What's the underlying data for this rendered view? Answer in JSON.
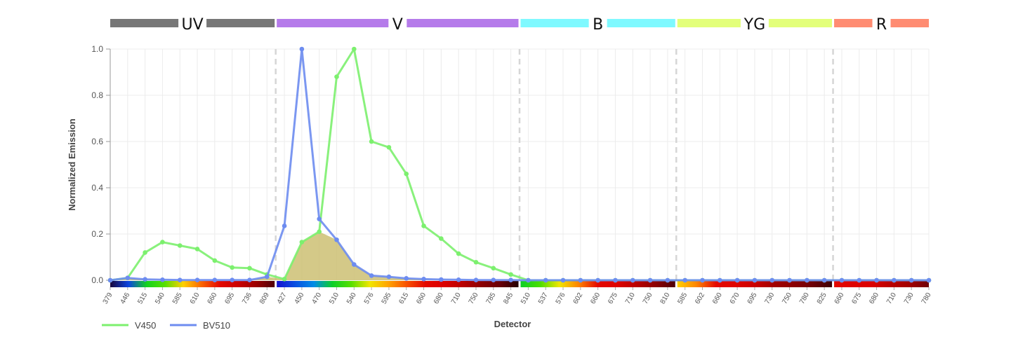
{
  "chart_data": {
    "type": "line",
    "title": "",
    "xlabel": "Detector",
    "ylabel": "Normalized Emission",
    "ylim": [
      0,
      1
    ],
    "yticks": [
      "0.0",
      "0.2",
      "0.4",
      "0.6",
      "0.8",
      "1.0"
    ],
    "grid": true,
    "legend_position": "bottom-left",
    "lasers": [
      {
        "name": "UV",
        "color": "#777777",
        "detectors": [
          "379",
          "446",
          "515",
          "540",
          "585",
          "610",
          "660",
          "695",
          "736",
          "809"
        ]
      },
      {
        "name": "V",
        "color": "#b57bea",
        "detectors": [
          "427",
          "450",
          "470",
          "510",
          "540",
          "576",
          "595",
          "615",
          "660",
          "680",
          "710",
          "750",
          "785",
          "845"
        ]
      },
      {
        "name": "B",
        "color": "#7ff9ff",
        "detectors": [
          "510",
          "537",
          "576",
          "602",
          "660",
          "675",
          "710",
          "750",
          "810"
        ]
      },
      {
        "name": "YG",
        "color": "#e3ff7a",
        "detectors": [
          "585",
          "602",
          "660",
          "670",
          "695",
          "730",
          "750",
          "780",
          "825"
        ]
      },
      {
        "name": "R",
        "color": "#ff8c72",
        "detectors": [
          "660",
          "675",
          "680",
          "710",
          "730",
          "780"
        ]
      }
    ],
    "series": [
      {
        "name": "V450",
        "color": "#7cf06e",
        "values": [
          0,
          0.01,
          0.12,
          0.165,
          0.15,
          0.135,
          0.085,
          0.055,
          0.052,
          0.025,
          0.005,
          0.165,
          0.21,
          0.88,
          1.0,
          0.6,
          0.575,
          0.46,
          0.235,
          0.18,
          0.115,
          0.078,
          0.052,
          0.025,
          0,
          0,
          0,
          0,
          0,
          0,
          0,
          0,
          0,
          0,
          0,
          0,
          0,
          0,
          0,
          0,
          0,
          0,
          0,
          0,
          0,
          0,
          0,
          0
        ]
      },
      {
        "name": "BV510",
        "color": "#6d8cf0",
        "values": [
          0,
          0.01,
          0.004,
          0.002,
          0.001,
          0.001,
          0.001,
          0.001,
          0.001,
          0.015,
          0.235,
          1.0,
          0.265,
          0.175,
          0.068,
          0.02,
          0.015,
          0.008,
          0.005,
          0.003,
          0.002,
          0.001,
          0.001,
          0.001,
          0,
          0,
          0,
          0,
          0,
          0,
          0,
          0,
          0,
          0,
          0,
          0,
          0,
          0,
          0,
          0,
          0,
          0,
          0,
          0,
          0,
          0,
          0,
          0
        ]
      }
    ],
    "overlap_fill_color": "#cdbf73"
  }
}
